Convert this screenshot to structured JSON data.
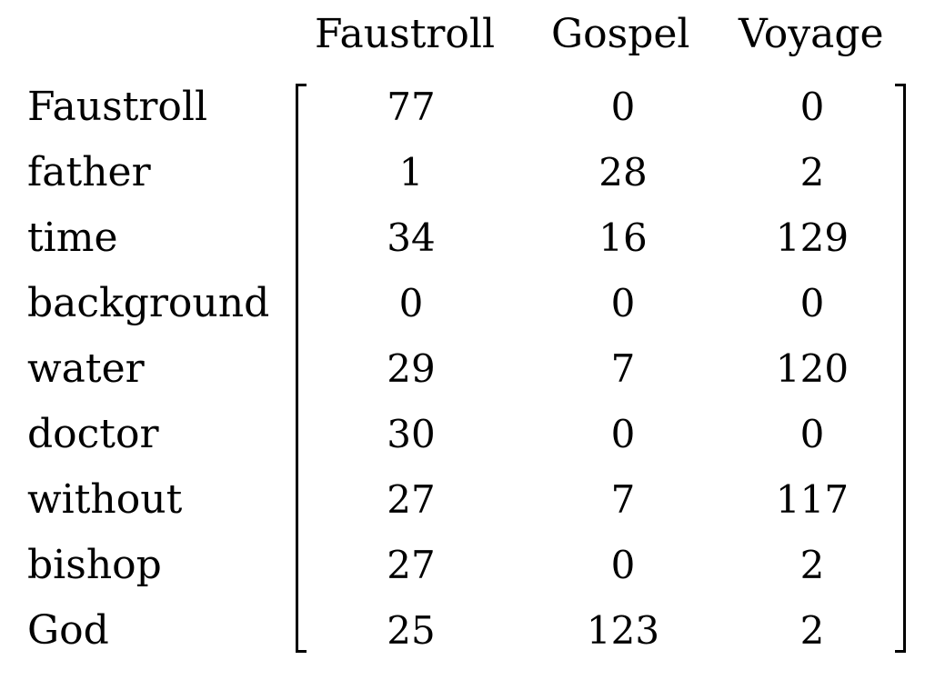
{
  "matrix": {
    "columns": [
      "Faustroll",
      "Gospel",
      "Voyage"
    ],
    "rows": [
      {
        "label": "Faustroll",
        "values": [
          "77",
          "0",
          "0"
        ]
      },
      {
        "label": "father",
        "values": [
          "1",
          "28",
          "2"
        ]
      },
      {
        "label": "time",
        "values": [
          "34",
          "16",
          "129"
        ]
      },
      {
        "label": "background",
        "values": [
          "0",
          "0",
          "0"
        ]
      },
      {
        "label": "water",
        "values": [
          "29",
          "7",
          "120"
        ]
      },
      {
        "label": "doctor",
        "values": [
          "30",
          "0",
          "0"
        ]
      },
      {
        "label": "without",
        "values": [
          "27",
          "7",
          "117"
        ]
      },
      {
        "label": "bishop",
        "values": [
          "27",
          "0",
          "2"
        ]
      },
      {
        "label": "God",
        "values": [
          "25",
          "123",
          "2"
        ]
      }
    ]
  }
}
